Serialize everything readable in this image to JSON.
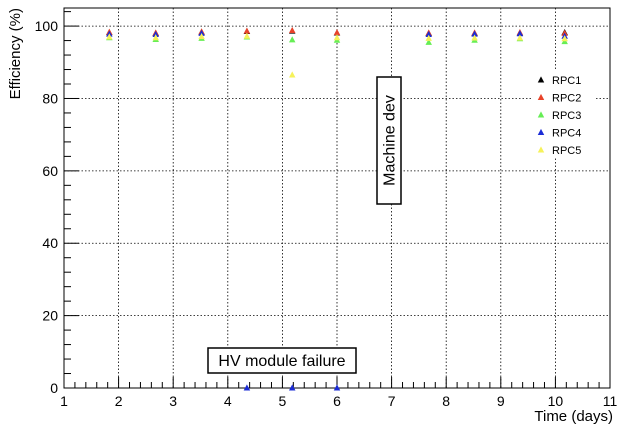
{
  "chart_data": {
    "type": "scatter",
    "xlabel": "Time (days)",
    "ylabel": "Efficiency (%)",
    "xlim": [
      1,
      11
    ],
    "ylim": [
      0,
      105
    ],
    "x_ticks": [
      "1",
      "2",
      "3",
      "4",
      "5",
      "6",
      "7",
      "8",
      "9",
      "10",
      "11"
    ],
    "y_ticks": [
      "0",
      "20",
      "40",
      "60",
      "80",
      "100"
    ],
    "grid": true,
    "legend_position": "top-right",
    "marker": "triangle",
    "series": [
      {
        "name": "RPC1",
        "color": "#000000",
        "x": [
          1.83,
          2.68,
          3.52,
          4.35,
          5.18,
          6.0,
          7.68,
          8.52,
          9.35,
          10.17
        ],
        "y": [
          98.2,
          98.0,
          98.3,
          98.5,
          98.6,
          98.1,
          98.0,
          98.0,
          98.1,
          98.2
        ]
      },
      {
        "name": "RPC2",
        "color": "#e8432a",
        "x": [
          1.83,
          2.68,
          3.52,
          4.35,
          5.18,
          6.0,
          7.68,
          8.52,
          9.35,
          10.17
        ],
        "y": [
          98.3,
          98.1,
          98.4,
          98.6,
          98.8,
          98.2,
          98.1,
          98.1,
          98.2,
          98.0
        ]
      },
      {
        "name": "RPC3",
        "color": "#66ee55",
        "x": [
          1.83,
          2.68,
          3.52,
          4.35,
          5.18,
          6.0,
          7.68,
          8.52,
          9.35,
          10.17
        ],
        "y": [
          96.8,
          96.3,
          96.6,
          97.0,
          96.2,
          96.1,
          95.5,
          96.1,
          96.5,
          95.7
        ]
      },
      {
        "name": "RPC4",
        "color": "#1b2cd6",
        "x": [
          1.83,
          2.68,
          3.52,
          4.35,
          5.18,
          6.0,
          7.68,
          8.52,
          9.35,
          10.17
        ],
        "y": [
          97.8,
          97.7,
          98.0,
          0.0,
          0.0,
          0.0,
          97.7,
          97.8,
          97.9,
          97.2
        ]
      },
      {
        "name": "RPC5",
        "color": "#f6f25a",
        "x": [
          1.83,
          2.68,
          3.52,
          4.35,
          5.18,
          6.0,
          7.68,
          8.52,
          9.35,
          10.17
        ],
        "y": [
          97.0,
          96.8,
          97.1,
          97.2,
          86.5,
          96.8,
          96.6,
          96.7,
          96.7,
          96.5
        ]
      }
    ],
    "annotations": {
      "hv_failure": "HV module failure",
      "machine_dev": "Machine dev"
    }
  }
}
